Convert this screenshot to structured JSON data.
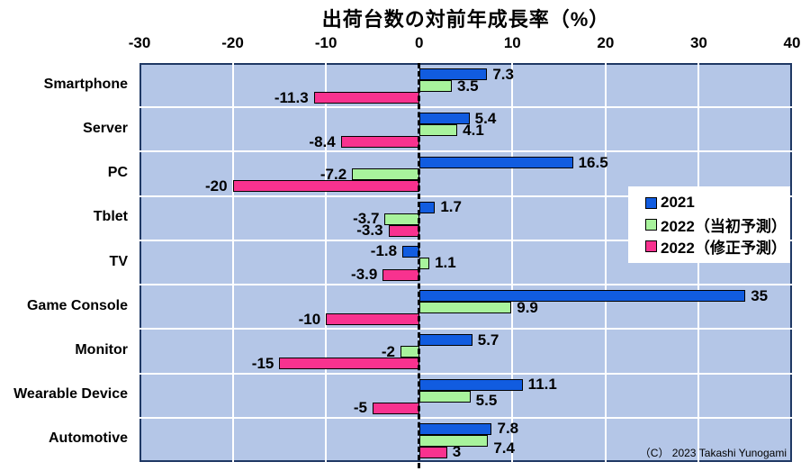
{
  "chart_data": {
    "type": "bar",
    "orientation": "horizontal",
    "title": "出荷台数の対前年成長率（%）",
    "xlabel": "",
    "ylabel": "",
    "xlim": [
      -30,
      40
    ],
    "x_ticks": [
      -30,
      -20,
      -10,
      0,
      10,
      20,
      30,
      40
    ],
    "grid": true,
    "zero_line": "dashed-black",
    "plot_bg_color": "#b4c6e7",
    "plot_border_color": "#1f3864",
    "gridline_color": "#ffffff",
    "legend_position": "middle-right",
    "categories": [
      "Smartphone",
      "Server",
      "PC",
      "Tblet",
      "TV",
      "Game Console",
      "Monitor",
      "Wearable Device",
      "Automotive"
    ],
    "series": [
      {
        "name": "2021",
        "color": "#115ce0",
        "values": [
          7.3,
          5.4,
          16.5,
          1.7,
          -1.8,
          35,
          5.7,
          11.1,
          7.8
        ],
        "labels": [
          "7.3",
          "5.4",
          "16.5",
          "1.7",
          "-1.8",
          "35",
          "5.7",
          "11.1",
          "7.8"
        ],
        "label_dy": [
          0,
          0,
          0,
          0,
          0,
          0,
          0,
          0,
          0
        ]
      },
      {
        "name": "2022（当初予測）",
        "color": "#a8f39c",
        "values": [
          3.5,
          4.1,
          -7.2,
          -3.7,
          1.1,
          9.9,
          -2,
          5.5,
          7.4
        ],
        "labels": [
          "3.5",
          "4.1",
          "-7.2",
          "-3.7",
          "1.1",
          "9.9",
          "-2",
          "5.5",
          "7.4"
        ],
        "label_dy": [
          0,
          0,
          0,
          0,
          0,
          0,
          0,
          5,
          9
        ]
      },
      {
        "name": "2022（修正予測）",
        "color": "#f8328f",
        "values": [
          -11.3,
          -8.4,
          -20,
          -3.3,
          -3.9,
          -10,
          -15,
          -5,
          3
        ],
        "labels": [
          "-11.3",
          "-8.4",
          "-20",
          "-3.3",
          "-3.9",
          "-10",
          "-15",
          "-5",
          "3"
        ],
        "label_dy": [
          0,
          0,
          0,
          0,
          0,
          0,
          0,
          0,
          0
        ]
      }
    ],
    "copyright": "（C） 2023 Takashi Yunogami"
  }
}
